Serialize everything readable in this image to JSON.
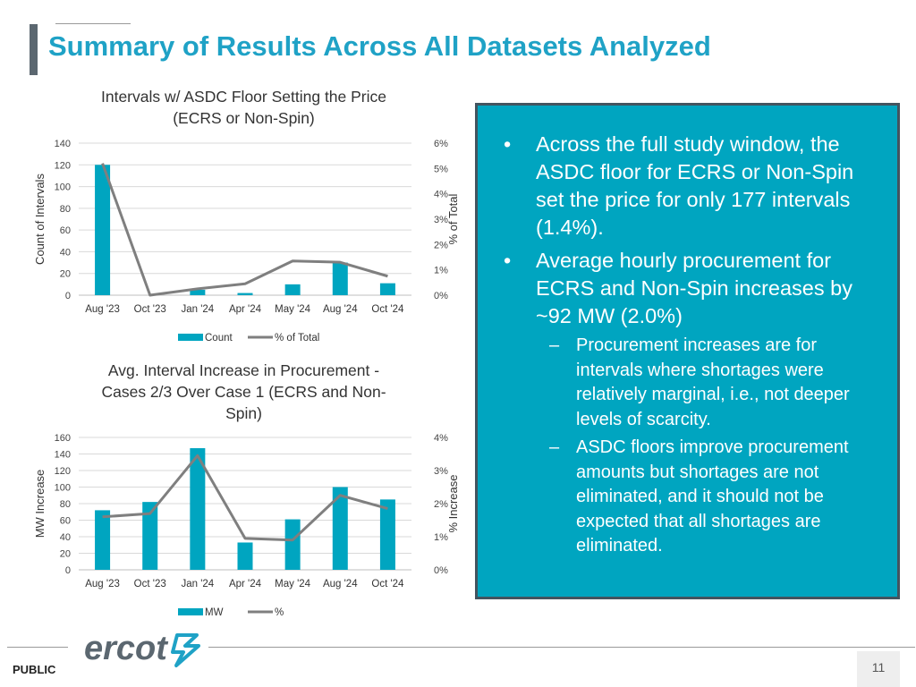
{
  "slide": {
    "title": "Summary of Results Across All Datasets Analyzed",
    "footer_label": "PUBLIC",
    "page_number": "11",
    "logo_text": "ercot"
  },
  "colors": {
    "title": "#1fa2c6",
    "bar": "#00a5c0",
    "line": "#7f7f7f",
    "panel_bg": "#00a5c0",
    "panel_border": "#43545f"
  },
  "panel": {
    "bullets": [
      "Across the full study window, the ASDC floor for ECRS or Non-Spin set the price for only 177 intervals (1.4%).",
      "Average hourly procurement for ECRS and Non-Spin increases by ~92 MW (2.0%)"
    ],
    "sub_bullets": [
      "Procurement increases are for intervals where shortages were relatively marginal, i.e., not deeper levels of scarcity.",
      "ASDC floors improve procurement amounts but shortages are not eliminated, and it should not be expected that all shortages are eliminated."
    ]
  },
  "chart_data": [
    {
      "type": "bar",
      "title_lines": [
        "Intervals w/ ASDC Floor Setting the Price",
        "(ECRS or Non-Spin)"
      ],
      "categories": [
        "Aug '23",
        "Oct '23",
        "Jan '24",
        "Apr '24",
        "May '24",
        "Aug '24",
        "Oct '24"
      ],
      "series": [
        {
          "name": "Count",
          "kind": "bar",
          "axis": "left",
          "values": [
            120,
            0,
            5,
            2,
            10,
            30,
            11
          ]
        },
        {
          "name": "% of Total",
          "kind": "line",
          "axis": "right",
          "values": [
            5.2,
            0.0,
            0.25,
            0.45,
            1.35,
            1.3,
            0.75
          ]
        }
      ],
      "ylabel": "Count of Intervals",
      "y2label": "% of Total",
      "ylim": [
        0,
        140
      ],
      "yticks": [
        "0",
        "20",
        "40",
        "60",
        "80",
        "100",
        "120",
        "140"
      ],
      "y2lim": [
        0,
        6
      ],
      "y2ticks": [
        "0%",
        "1%",
        "2%",
        "3%",
        "4%",
        "5%",
        "6%"
      ],
      "grid": true,
      "legend_position": "bottom"
    },
    {
      "type": "bar",
      "title_lines": [
        "Avg. Interval Increase in Procurement -",
        "Cases 2/3 Over Case 1 (ECRS and Non-",
        "Spin)"
      ],
      "categories": [
        "Aug '23",
        "Oct '23",
        "Jan '24",
        "Apr '24",
        "May '24",
        "Aug '24",
        "Oct '24"
      ],
      "series": [
        {
          "name": "MW",
          "kind": "bar",
          "axis": "left",
          "values": [
            72,
            82,
            147,
            33,
            61,
            100,
            85
          ]
        },
        {
          "name": "%",
          "kind": "line",
          "axis": "right",
          "values": [
            1.6,
            1.7,
            3.45,
            0.95,
            0.9,
            2.25,
            1.85
          ]
        }
      ],
      "ylabel": "MW Increase",
      "y2label": "% Increase",
      "ylim": [
        0,
        160
      ],
      "yticks": [
        "0",
        "20",
        "40",
        "60",
        "80",
        "100",
        "120",
        "140",
        "160"
      ],
      "y2lim": [
        0,
        4
      ],
      "y2ticks": [
        "0%",
        "1%",
        "2%",
        "3%",
        "4%"
      ],
      "grid": true,
      "legend_position": "bottom"
    }
  ]
}
